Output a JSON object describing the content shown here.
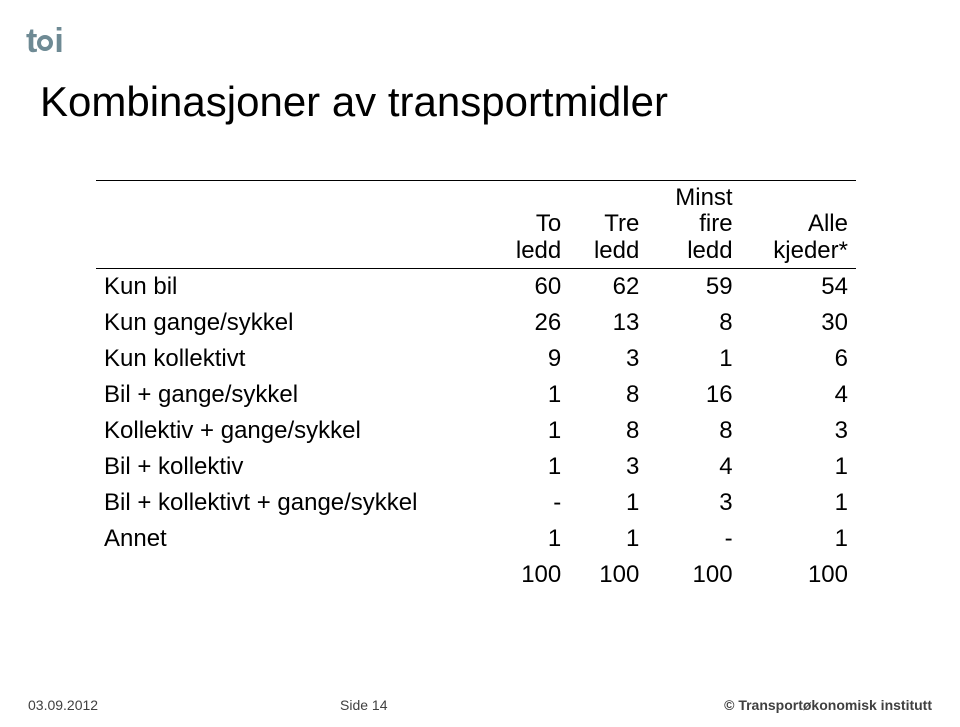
{
  "logo_text": "tøi",
  "title": "Kombinasjoner av transportmidler",
  "table": {
    "columns": [
      "",
      "To ledd",
      "Tre ledd",
      "Minst fire ledd",
      "Alle kjeder*"
    ],
    "rows": [
      [
        "Kun bil",
        "60",
        "62",
        "59",
        "54"
      ],
      [
        "Kun gange/sykkel",
        "26",
        "13",
        "8",
        "30"
      ],
      [
        "Kun kollektivt",
        "9",
        "3",
        "1",
        "6"
      ],
      [
        "Bil + gange/sykkel",
        "1",
        "8",
        "16",
        "4"
      ],
      [
        "Kollektiv + gange/sykkel",
        "1",
        "8",
        "8",
        "3"
      ],
      [
        "Bil + kollektiv",
        "1",
        "3",
        "4",
        "1"
      ],
      [
        "Bil + kollektivt + gange/sykkel",
        "-",
        "1",
        "3",
        "1"
      ],
      [
        "Annet",
        "1",
        "1",
        "-",
        "1"
      ],
      [
        "",
        "100",
        "100",
        "100",
        "100"
      ]
    ],
    "header_multiline": {
      "col1": [
        "To",
        "ledd"
      ],
      "col2": [
        "Tre",
        "ledd"
      ],
      "col3": [
        "Minst",
        "fire",
        "ledd"
      ],
      "col4": [
        "Alle",
        "kjeder*"
      ]
    },
    "col_widths": [
      "52%",
      "12%",
      "12%",
      "12%",
      "12%"
    ],
    "font_size": 24,
    "text_align_first": "left",
    "text_align_rest": "right",
    "border_color": "#000000"
  },
  "footer": {
    "date": "03.09.2012",
    "page": "Side 14",
    "institute": "© Transportøkonomisk institutt"
  },
  "colors": {
    "logo": "#6e8a94",
    "text": "#000000",
    "footer_text": "#404040",
    "background": "#ffffff"
  },
  "fonts": {
    "title_size_pt": 32,
    "body_size_pt": 18,
    "footer_size_pt": 10
  }
}
